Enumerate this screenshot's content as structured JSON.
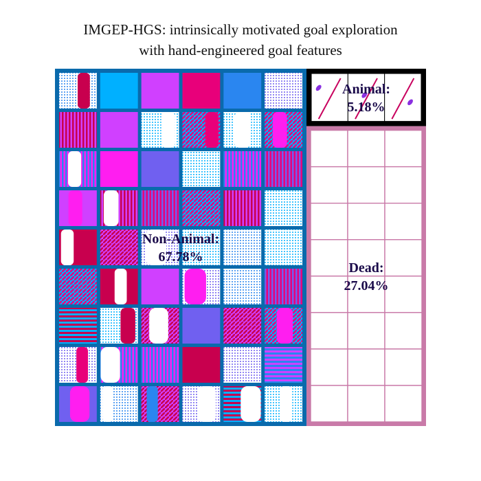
{
  "chart_data": {
    "type": "treemap",
    "title_lines": [
      "IMGEP-HGS: intrinsically motivated goal exploration",
      "with hand-engineered goal features"
    ],
    "categories": [
      {
        "name": "Non-Animal",
        "label": "Non-Animal:",
        "percent_label": "67.78%",
        "value": 67.78,
        "border_color": "#0a6aac",
        "cell_fill": "#0a6aac",
        "grid": {
          "cols": 6,
          "rows": 9
        }
      },
      {
        "name": "Animal",
        "label": "Animal:",
        "percent_label": "5.18%",
        "value": 5.18,
        "border_color": "#000000",
        "cell_fill": "#ffffff",
        "grid": {
          "cols": 3,
          "rows": 1
        }
      },
      {
        "name": "Dead",
        "label": "Dead:",
        "percent_label": "27.04%",
        "value": 27.04,
        "border_color": "#c97aa8",
        "cell_fill": "#ffffff",
        "grid": {
          "cols": 3,
          "rows": 8
        }
      }
    ],
    "thumbnail_palette": [
      "#2a86f0",
      "#c8004e",
      "#e8007a",
      "#ff1ef0",
      "#d040ff",
      "#00b0ff",
      "#7060f0",
      "#ffffff"
    ]
  }
}
